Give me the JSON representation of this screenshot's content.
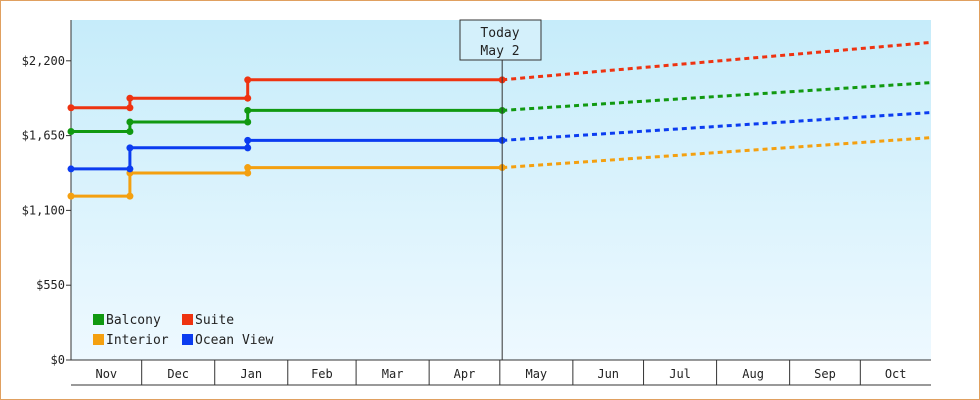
{
  "chart_data": {
    "type": "line",
    "title": "",
    "xlabel": "",
    "ylabel": "",
    "ylim": [
      0,
      2500
    ],
    "y_ticks": [
      0,
      550,
      1100,
      1650,
      2200
    ],
    "y_tick_labels": [
      "$0",
      "$550",
      "$1,100",
      "$1,650",
      "$2,200"
    ],
    "months": [
      "Nov",
      "Dec",
      "Jan",
      "Feb",
      "Mar",
      "Apr",
      "May",
      "Jun",
      "Jul",
      "Aug",
      "Sep",
      "Oct"
    ],
    "x_start": "2023-11-01",
    "x_end": "2024-10-31",
    "today": {
      "date": "2024-05-02",
      "label_line1": "Today",
      "label_line2": "May 2"
    },
    "legend_position": "bottom-left",
    "grid": false,
    "series": [
      {
        "name": "Balcony",
        "color": "#119911",
        "history": [
          [
            "2023-11-01",
            1680
          ],
          [
            "2023-11-26",
            1680
          ],
          [
            "2023-11-26",
            1750
          ],
          [
            "2024-01-15",
            1750
          ],
          [
            "2024-01-15",
            1835
          ],
          [
            "2024-05-02",
            1835
          ]
        ],
        "projection": [
          [
            "2024-05-02",
            1835
          ],
          [
            "2024-10-31",
            2040
          ]
        ]
      },
      {
        "name": "Suite",
        "color": "#ee3311",
        "history": [
          [
            "2023-11-01",
            1855
          ],
          [
            "2023-11-26",
            1855
          ],
          [
            "2023-11-26",
            1925
          ],
          [
            "2024-01-15",
            1925
          ],
          [
            "2024-01-15",
            2060
          ],
          [
            "2024-05-02",
            2060
          ]
        ],
        "projection": [
          [
            "2024-05-02",
            2060
          ],
          [
            "2024-10-31",
            2335
          ]
        ]
      },
      {
        "name": "Interior",
        "color": "#f4a010",
        "history": [
          [
            "2023-11-01",
            1205
          ],
          [
            "2023-11-26",
            1205
          ],
          [
            "2023-11-26",
            1375
          ],
          [
            "2024-01-15",
            1375
          ],
          [
            "2024-01-15",
            1415
          ],
          [
            "2024-05-02",
            1415
          ]
        ],
        "projection": [
          [
            "2024-05-02",
            1415
          ],
          [
            "2024-10-31",
            1635
          ]
        ]
      },
      {
        "name": "Ocean View",
        "color": "#0b3cf0",
        "history": [
          [
            "2023-11-01",
            1405
          ],
          [
            "2023-11-26",
            1405
          ],
          [
            "2023-11-26",
            1560
          ],
          [
            "2024-01-15",
            1560
          ],
          [
            "2024-01-15",
            1615
          ],
          [
            "2024-05-02",
            1615
          ]
        ],
        "projection": [
          [
            "2024-05-02",
            1615
          ],
          [
            "2024-10-31",
            1820
          ]
        ]
      }
    ]
  }
}
